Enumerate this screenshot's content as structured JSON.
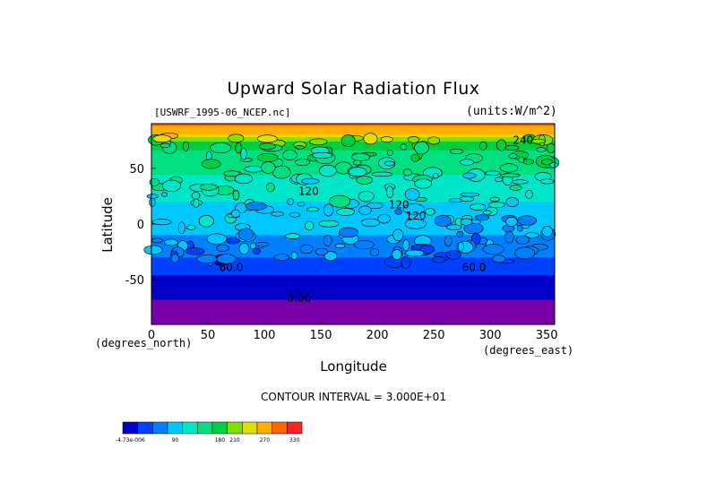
{
  "title": "Upward Solar Radiation Flux",
  "file_label": "[USWRF_1995-06_NCEP.nc]",
  "units_label": "(units:W/m^2)",
  "contour_text": "CONTOUR INTERVAL = 3.000E+01",
  "chart_data": {
    "type": "heatmap",
    "title": "Upward Solar Radiation Flux",
    "xlabel": "Longitude",
    "ylabel": "Latitude",
    "x_unit_label": "(degrees_east)",
    "y_unit_label": "(degrees_north)",
    "xlim": [
      0,
      357
    ],
    "ylim": [
      -90,
      90
    ],
    "x_ticks": [
      0,
      50,
      100,
      150,
      200,
      250,
      300,
      350
    ],
    "y_ticks": [
      50,
      0,
      -50
    ],
    "contour_interval": 30,
    "contour_labels": [
      "120",
      "120",
      "120",
      "60.0",
      "60.0",
      "0.00",
      "240"
    ],
    "zonal_profile": [
      {
        "lat": 88,
        "value": 300
      },
      {
        "lat": 82,
        "value": 280
      },
      {
        "lat": 72,
        "value": 190
      },
      {
        "lat": 60,
        "value": 170
      },
      {
        "lat": 45,
        "value": 150
      },
      {
        "lat": 30,
        "value": 135
      },
      {
        "lat": 20,
        "value": 120
      },
      {
        "lat": 10,
        "value": 110
      },
      {
        "lat": 0,
        "value": 110
      },
      {
        "lat": -10,
        "value": 90
      },
      {
        "lat": -20,
        "value": 85
      },
      {
        "lat": -30,
        "value": 60
      },
      {
        "lat": -40,
        "value": 40
      },
      {
        "lat": -50,
        "value": 20
      },
      {
        "lat": -60,
        "value": 5
      },
      {
        "lat": -70,
        "value": 0
      },
      {
        "lat": -90,
        "value": 0
      }
    ],
    "colorbar": {
      "tick_labels": [
        "-4.73e-006",
        "90",
        "180",
        "210",
        "270",
        "330"
      ],
      "colors": [
        "#0000c8",
        "#0040ff",
        "#0080ff",
        "#00c8ff",
        "#00e6c8",
        "#00e080",
        "#00d040",
        "#80e000",
        "#e0e000",
        "#ffb000",
        "#ff6000",
        "#ff2020"
      ]
    },
    "band_colors": {
      "purple": "#7800a8",
      "deep_blue": "#0000c8",
      "blue": "#0040ff",
      "cyan": "#00c8ff",
      "green": "#00d040",
      "light_green": "#50e060",
      "yellow_green": "#a0e000",
      "orange": "#ff6000",
      "red": "#ff2020"
    }
  }
}
